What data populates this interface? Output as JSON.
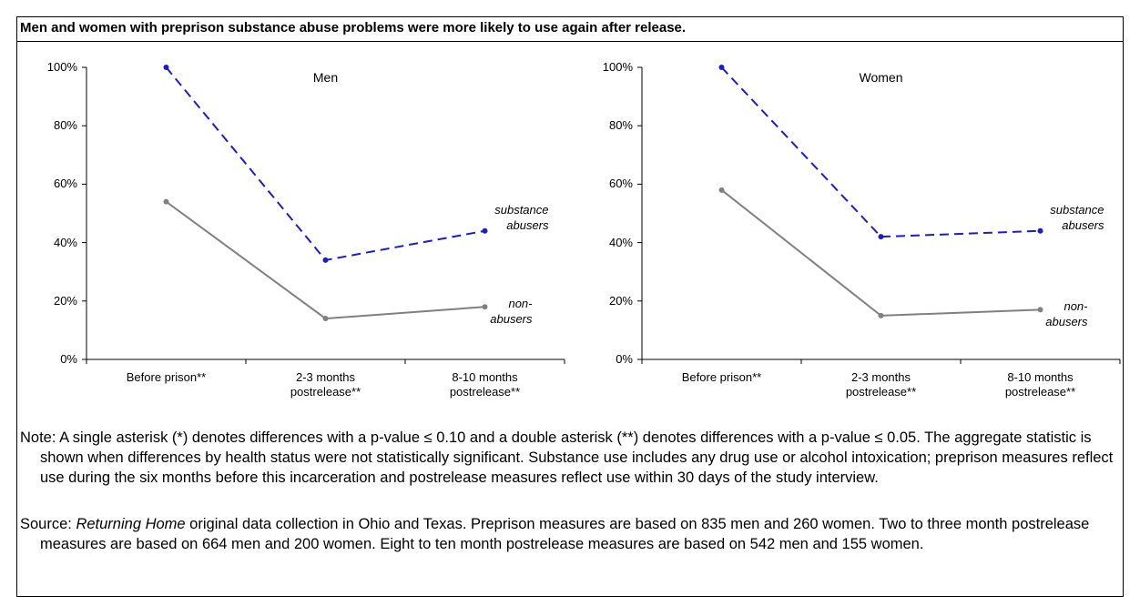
{
  "title": "Men and women with preprison substance abuse problems were more likely to use again after release.",
  "chart_data": [
    {
      "type": "line",
      "title": "Men",
      "categories": [
        "Before prison**",
        "2-3 months postrelease**",
        "8-10 months postrelease**"
      ],
      "series": [
        {
          "name": "substance abusers",
          "color": "#1c1cc8",
          "dashed": true,
          "values": [
            100,
            34,
            44
          ]
        },
        {
          "name": "non-abusers",
          "color": "#808080",
          "dashed": false,
          "values": [
            54,
            14,
            18
          ]
        }
      ],
      "ylim": [
        0,
        100
      ],
      "yticks": [
        {
          "value": 0,
          "label": "0%"
        },
        {
          "value": 20,
          "label": "20%"
        },
        {
          "value": 40,
          "label": "40%"
        },
        {
          "value": 60,
          "label": "60%"
        },
        {
          "value": 80,
          "label": "80%"
        },
        {
          "value": 100,
          "label": "100%"
        }
      ]
    },
    {
      "type": "line",
      "title": "Women",
      "categories": [
        "Before prison**",
        "2-3 months postrelease**",
        "8-10 months postrelease**"
      ],
      "series": [
        {
          "name": "substance abusers",
          "color": "#1c1cc8",
          "dashed": true,
          "values": [
            100,
            42,
            44
          ]
        },
        {
          "name": "non-abusers",
          "color": "#808080",
          "dashed": false,
          "values": [
            58,
            15,
            17
          ]
        }
      ],
      "ylim": [
        0,
        100
      ],
      "yticks": [
        {
          "value": 0,
          "label": "0%"
        },
        {
          "value": 20,
          "label": "20%"
        },
        {
          "value": 40,
          "label": "40%"
        },
        {
          "value": 60,
          "label": "60%"
        },
        {
          "value": 80,
          "label": "80%"
        },
        {
          "value": 100,
          "label": "100%"
        }
      ]
    }
  ],
  "note": "Note: A single asterisk (*) denotes differences with a p-value ≤ 0.10 and a double asterisk (**) denotes differences with a p-value ≤ 0.05.  The aggregate statistic is shown when differences by health status were not statistically significant.  Substance use includes any drug use or alcohol intoxication; preprison measures reflect use during the six months before this incarceration and postrelease measures reflect use within 30 days of the study interview.",
  "source": {
    "prefix": "Source: ",
    "italic": "Returning Home",
    "rest": " original data collection in Ohio and Texas.  Preprison measures are based on 835 men and 260 women.  Two to three month postrelease measures are based on 664 men and 200 women.  Eight to ten month postrelease measures are based on 542 men and 155 women."
  }
}
